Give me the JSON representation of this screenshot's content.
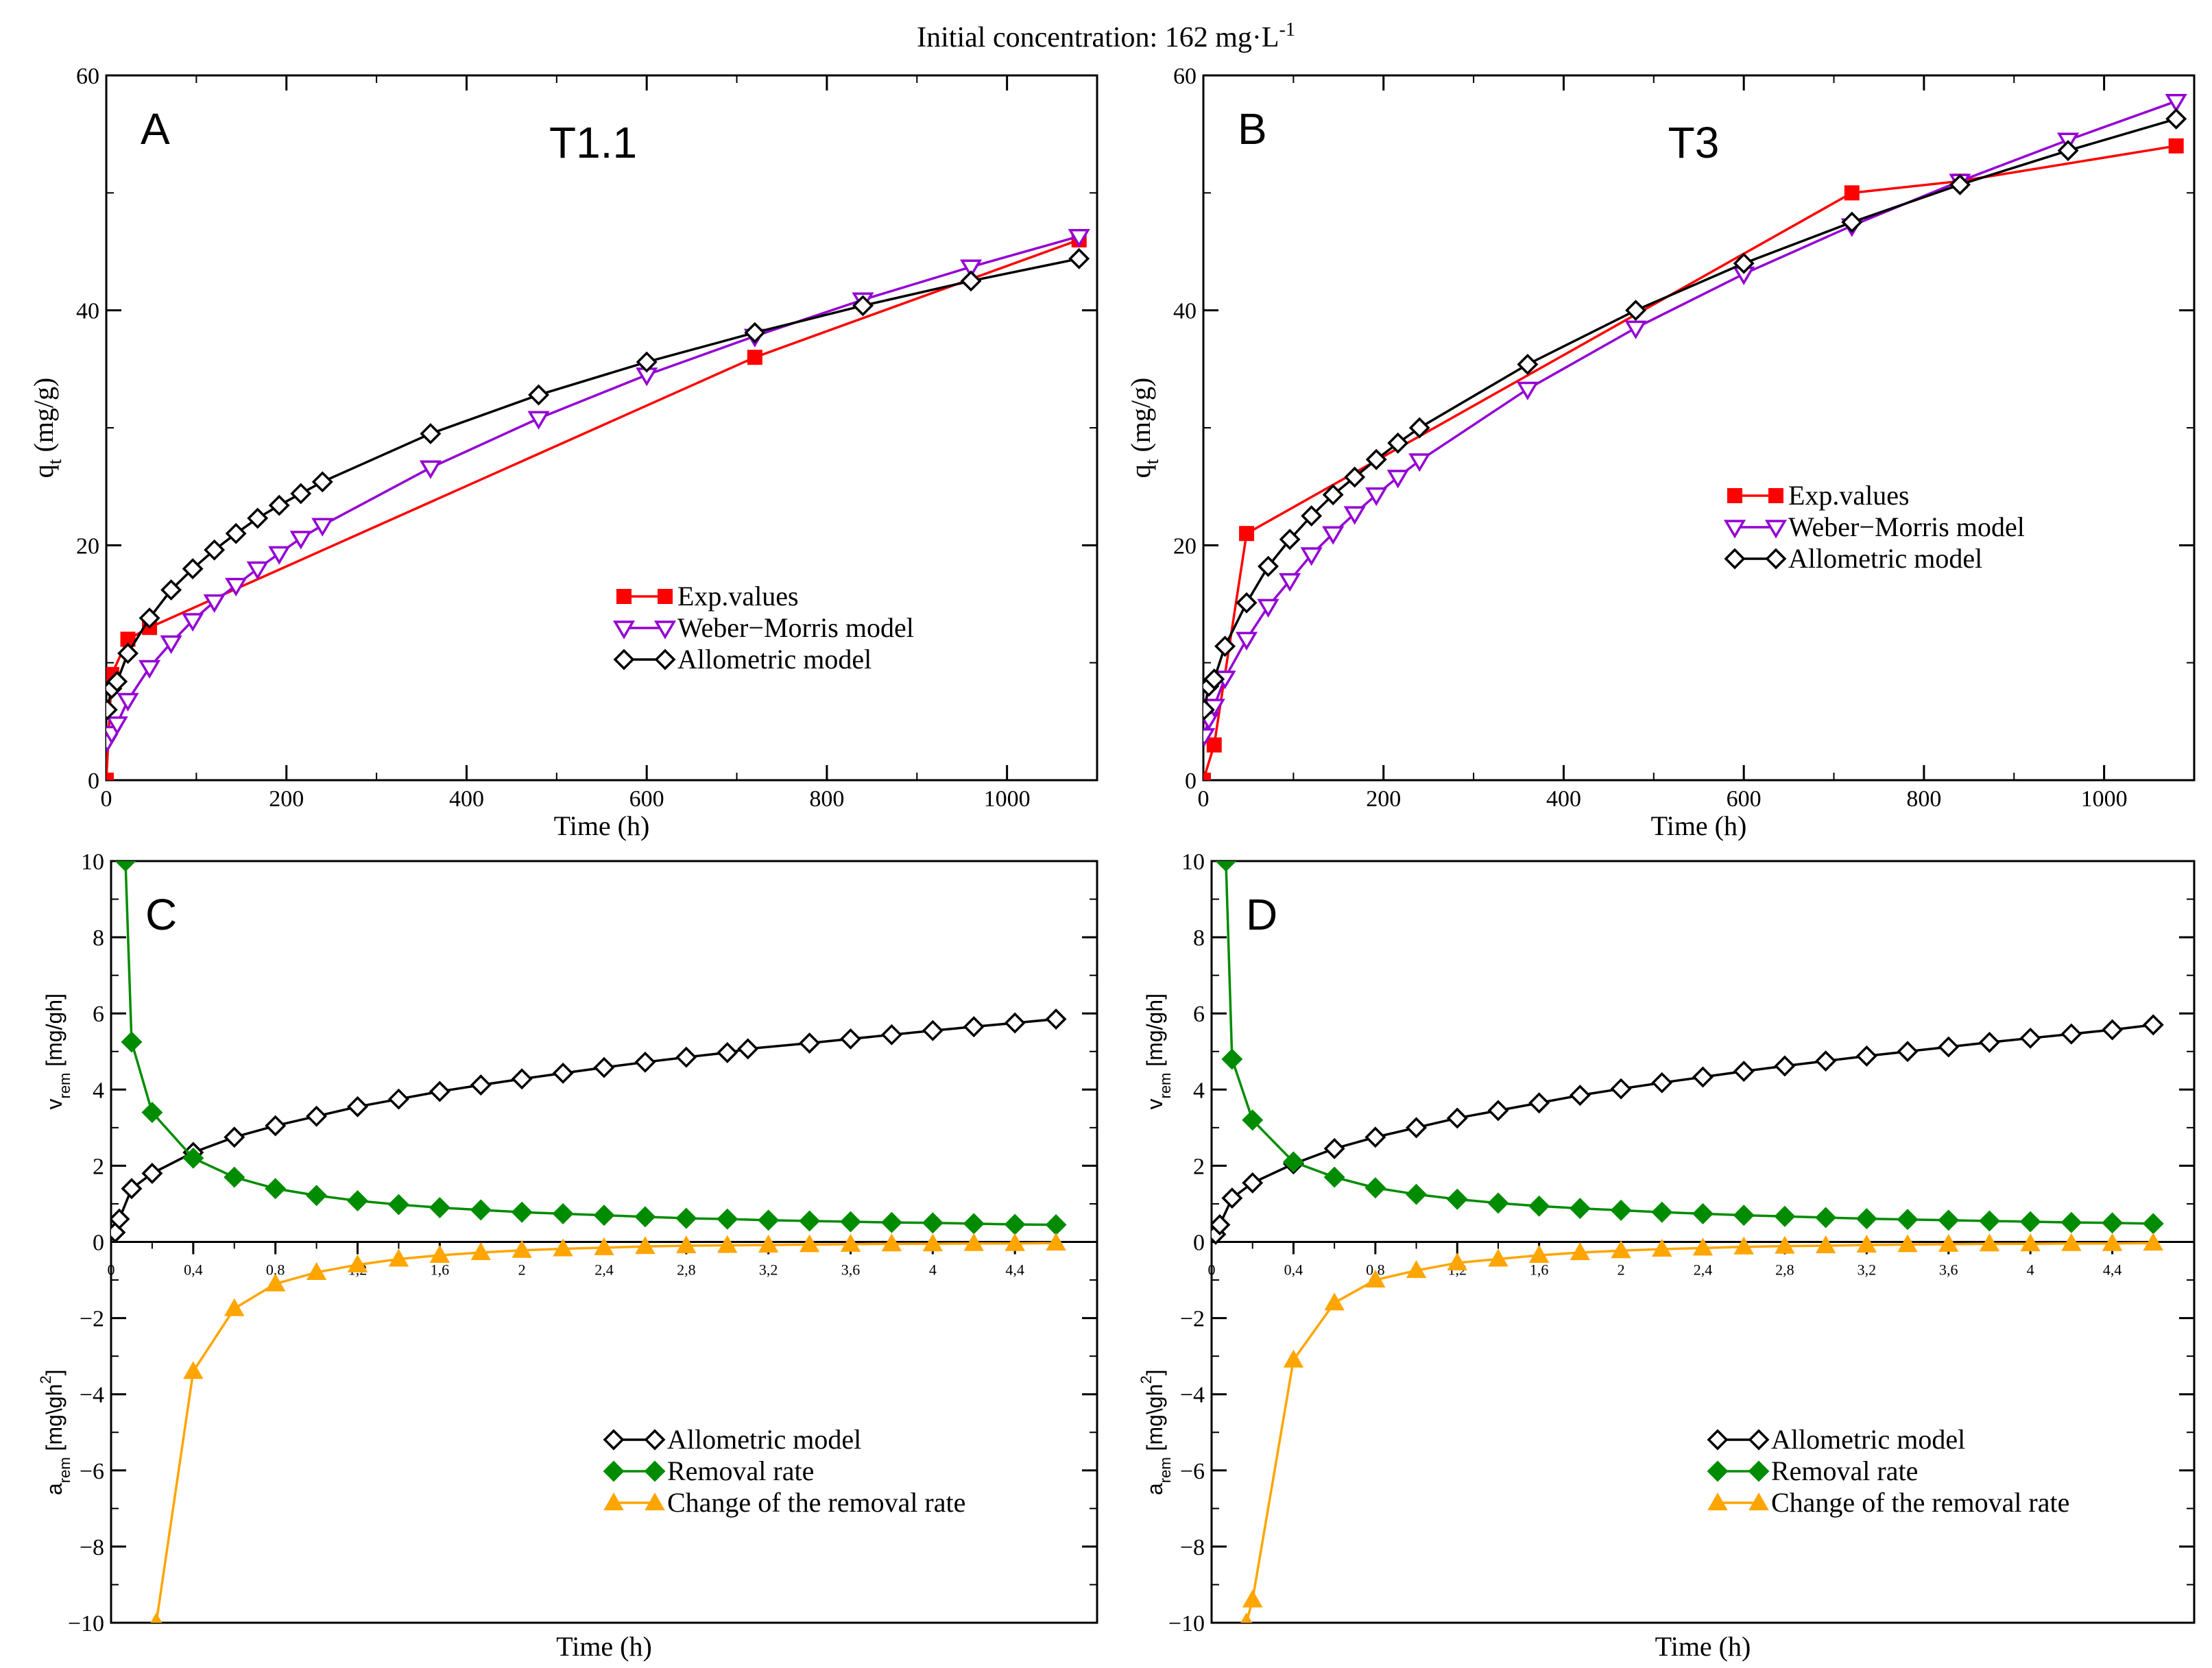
{
  "figure_title": {
    "main": "Initial concentration: 162 mg·L",
    "sup": "-1"
  },
  "colors": {
    "exp": "#ff0000",
    "weber": "#9400d3",
    "allometric": "#000000",
    "removal": "#008c00",
    "change": "#ffa500"
  },
  "chart_data": [
    {
      "type": "line",
      "panel": "A",
      "title": "T1.1",
      "xlabel": "Time (h)",
      "ylabel": {
        "main": "q",
        "sub": "t",
        "rest": " (mg/g)"
      },
      "xlim": [
        0,
        1100
      ],
      "ylim": [
        0,
        60
      ],
      "xticks": [
        0,
        200,
        400,
        600,
        800,
        1000
      ],
      "yticks": [
        0,
        20,
        40,
        60
      ],
      "legend": "center-right",
      "series": [
        {
          "name": "Exp.values",
          "color": "#ff0000",
          "marker": "square",
          "x": [
            0,
            6,
            24,
            48,
            720,
            1080
          ],
          "y": [
            0,
            9.0,
            12.0,
            13.0,
            36.0,
            46.0
          ]
        },
        {
          "name": "Weber−Morris model",
          "color": "#9400d3",
          "marker": "triangle-down",
          "x": [
            1,
            6,
            12,
            24,
            48,
            72,
            96,
            120,
            144,
            168,
            192,
            216,
            240,
            360,
            480,
            600,
            720,
            840,
            960,
            1080
          ],
          "y": [
            3.3,
            4.0,
            4.8,
            6.8,
            9.6,
            11.7,
            13.6,
            15.2,
            16.6,
            18.0,
            19.3,
            20.6,
            21.7,
            26.6,
            30.8,
            34.5,
            37.8,
            40.9,
            43.7,
            46.3
          ]
        },
        {
          "name": "Allometric model",
          "color": "#000000",
          "marker": "diamond",
          "x": [
            1,
            6,
            12,
            24,
            48,
            72,
            96,
            120,
            144,
            168,
            192,
            216,
            240,
            360,
            480,
            600,
            720,
            840,
            960,
            1080
          ],
          "y": [
            6.0,
            7.8,
            8.4,
            10.8,
            13.8,
            16.2,
            18.0,
            19.6,
            21.0,
            22.3,
            23.4,
            24.4,
            25.4,
            29.5,
            32.8,
            35.6,
            38.1,
            40.4,
            42.5,
            44.4
          ]
        }
      ]
    },
    {
      "type": "line",
      "panel": "B",
      "title": "T3",
      "xlabel": "Time (h)",
      "ylabel": {
        "main": "q",
        "sub": "t",
        "rest": " (mg/g)"
      },
      "xlim": [
        0,
        1100
      ],
      "ylim": [
        0,
        60
      ],
      "xticks": [
        0,
        200,
        400,
        600,
        800,
        1000
      ],
      "yticks": [
        0,
        20,
        40,
        60
      ],
      "legend": "center-right",
      "series": [
        {
          "name": "Exp.values",
          "color": "#ff0000",
          "marker": "square",
          "x": [
            0,
            12,
            48,
            720,
            840,
            1080
          ],
          "y": [
            0,
            3.0,
            21.0,
            50.0,
            51.0,
            54.0
          ]
        },
        {
          "name": "Weber−Morris model",
          "color": "#9400d3",
          "marker": "triangle-down",
          "x": [
            1,
            6,
            12,
            24,
            48,
            72,
            96,
            120,
            144,
            168,
            192,
            216,
            240,
            360,
            480,
            600,
            720,
            840,
            960,
            1080
          ],
          "y": [
            3.8,
            5.2,
            6.3,
            8.7,
            12.0,
            14.8,
            17.0,
            19.2,
            21.0,
            22.7,
            24.3,
            25.8,
            27.2,
            33.3,
            38.5,
            43.1,
            47.2,
            51.0,
            54.5,
            57.8
          ]
        },
        {
          "name": "Allometric model",
          "color": "#000000",
          "marker": "diamond",
          "x": [
            1,
            6,
            12,
            24,
            48,
            72,
            96,
            120,
            144,
            168,
            192,
            216,
            240,
            360,
            480,
            600,
            720,
            840,
            960,
            1080
          ],
          "y": [
            6.0,
            8.0,
            8.6,
            11.4,
            15.1,
            18.2,
            20.5,
            22.5,
            24.3,
            25.8,
            27.3,
            28.7,
            30.0,
            35.4,
            40.0,
            44.0,
            47.5,
            50.7,
            53.6,
            56.3
          ]
        }
      ]
    },
    {
      "type": "line",
      "panel": "C",
      "xlabel": "Time (h)",
      "ylabel_top": {
        "main": "v",
        "sub": "rem",
        "rest": " [mg/gh]"
      },
      "ylabel_bottom": {
        "main": "a",
        "sub": "rem",
        "rest": " [mg\\gh",
        "sup": "2",
        "end": "]"
      },
      "xlim": [
        0,
        4.8
      ],
      "ylim": [
        -10,
        10
      ],
      "xticks": [
        "0",
        "0,4",
        "0,8",
        "1,2",
        "1,6",
        "2",
        "2,4",
        "2,8",
        "3,2",
        "3,6",
        "4",
        "4,4"
      ],
      "yticks": [
        -10,
        -8,
        -6,
        -4,
        -2,
        0,
        2,
        4,
        6,
        8,
        10
      ],
      "legend": "bottom-right",
      "series": [
        {
          "name": "Allometric model",
          "color": "#000000",
          "marker": "diamond",
          "x": [
            0.02,
            0.04,
            0.1,
            0.2,
            0.4,
            0.6,
            0.8,
            1.0,
            1.2,
            1.4,
            1.6,
            1.8,
            2.0,
            2.2,
            2.4,
            2.6,
            2.8,
            3.0,
            3.1,
            3.4,
            3.6,
            3.8,
            4.0,
            4.2,
            4.4,
            4.6
          ],
          "y": [
            0.25,
            0.6,
            1.4,
            1.8,
            2.35,
            2.75,
            3.05,
            3.3,
            3.55,
            3.75,
            3.95,
            4.12,
            4.28,
            4.43,
            4.58,
            4.72,
            4.85,
            4.97,
            5.07,
            5.22,
            5.33,
            5.44,
            5.55,
            5.65,
            5.75,
            5.85
          ]
        },
        {
          "name": "Removal rate",
          "color": "#008c00",
          "marker": "diamond-filled",
          "x": [
            0.07,
            0.1,
            0.2,
            0.4,
            0.6,
            0.8,
            1.0,
            1.2,
            1.4,
            1.6,
            1.8,
            2.0,
            2.2,
            2.4,
            2.6,
            2.8,
            3.0,
            3.2,
            3.4,
            3.6,
            3.8,
            4.0,
            4.2,
            4.4,
            4.6
          ],
          "y": [
            10.0,
            5.25,
            3.4,
            2.2,
            1.7,
            1.4,
            1.22,
            1.08,
            0.98,
            0.9,
            0.84,
            0.78,
            0.74,
            0.7,
            0.66,
            0.62,
            0.6,
            0.57,
            0.55,
            0.53,
            0.51,
            0.5,
            0.48,
            0.46,
            0.45
          ]
        },
        {
          "name": "Change of the removal rate",
          "color": "#ffa500",
          "marker": "triangle-up",
          "x": [
            0.22,
            0.4,
            0.6,
            0.8,
            1.0,
            1.2,
            1.4,
            1.6,
            1.8,
            2.0,
            2.2,
            2.4,
            2.6,
            2.8,
            3.0,
            3.2,
            3.4,
            3.6,
            3.8,
            4.0,
            4.2,
            4.4,
            4.6
          ],
          "y": [
            -10.0,
            -3.4,
            -1.75,
            -1.1,
            -0.8,
            -0.6,
            -0.45,
            -0.35,
            -0.28,
            -0.22,
            -0.18,
            -0.15,
            -0.12,
            -0.1,
            -0.09,
            -0.08,
            -0.07,
            -0.06,
            -0.05,
            -0.05,
            -0.04,
            -0.04,
            -0.03
          ]
        }
      ]
    },
    {
      "type": "line",
      "panel": "D",
      "xlabel": "Time (h)",
      "ylabel_top": {
        "main": "v",
        "sub": "rem",
        "rest": " [mg/gh]"
      },
      "ylabel_bottom": {
        "main": "a",
        "sub": "rem",
        "rest": " [mg\\gh",
        "sup": "2",
        "end": "]"
      },
      "xlim": [
        0,
        4.8
      ],
      "ylim": [
        -10,
        10
      ],
      "xticks": [
        "0",
        "0,4",
        "0,8",
        "1,2",
        "1,6",
        "2",
        "2,4",
        "2,8",
        "3,2",
        "3,6",
        "4",
        "4,4"
      ],
      "yticks": [
        -10,
        -8,
        -6,
        -4,
        -2,
        0,
        2,
        4,
        6,
        8,
        10
      ],
      "legend": "bottom-right",
      "series": [
        {
          "name": "Allometric model",
          "color": "#000000",
          "marker": "diamond",
          "x": [
            0.02,
            0.04,
            0.1,
            0.2,
            0.4,
            0.6,
            0.8,
            1.0,
            1.2,
            1.4,
            1.6,
            1.8,
            2.0,
            2.2,
            2.4,
            2.6,
            2.8,
            3.0,
            3.2,
            3.4,
            3.6,
            3.8,
            4.0,
            4.2,
            4.4,
            4.6
          ],
          "y": [
            0.2,
            0.45,
            1.15,
            1.55,
            2.05,
            2.45,
            2.75,
            3.0,
            3.25,
            3.45,
            3.65,
            3.85,
            4.02,
            4.18,
            4.33,
            4.48,
            4.62,
            4.75,
            4.88,
            5.0,
            5.12,
            5.24,
            5.35,
            5.46,
            5.57,
            5.7
          ]
        },
        {
          "name": "Removal rate",
          "color": "#008c00",
          "marker": "diamond-filled",
          "x": [
            0.07,
            0.1,
            0.2,
            0.4,
            0.6,
            0.8,
            1.0,
            1.2,
            1.4,
            1.6,
            1.8,
            2.0,
            2.2,
            2.4,
            2.6,
            2.8,
            3.0,
            3.2,
            3.4,
            3.6,
            3.8,
            4.0,
            4.2,
            4.4,
            4.6
          ],
          "y": [
            10.0,
            4.8,
            3.2,
            2.1,
            1.7,
            1.42,
            1.25,
            1.12,
            1.02,
            0.94,
            0.88,
            0.83,
            0.78,
            0.74,
            0.7,
            0.67,
            0.64,
            0.61,
            0.59,
            0.57,
            0.55,
            0.53,
            0.51,
            0.5,
            0.48
          ]
        },
        {
          "name": "Change of the removal rate",
          "color": "#ffa500",
          "marker": "triangle-up",
          "x": [
            0.17,
            0.2,
            0.4,
            0.6,
            0.8,
            1.0,
            1.2,
            1.4,
            1.6,
            1.8,
            2.0,
            2.2,
            2.4,
            2.6,
            2.8,
            3.0,
            3.2,
            3.4,
            3.6,
            3.8,
            4.0,
            4.2,
            4.4,
            4.6
          ],
          "y": [
            -10.0,
            -9.4,
            -3.1,
            -1.6,
            -1.0,
            -0.75,
            -0.55,
            -0.45,
            -0.35,
            -0.28,
            -0.23,
            -0.19,
            -0.16,
            -0.13,
            -0.11,
            -0.1,
            -0.08,
            -0.07,
            -0.06,
            -0.05,
            -0.05,
            -0.04,
            -0.04,
            -0.03
          ]
        }
      ]
    }
  ]
}
